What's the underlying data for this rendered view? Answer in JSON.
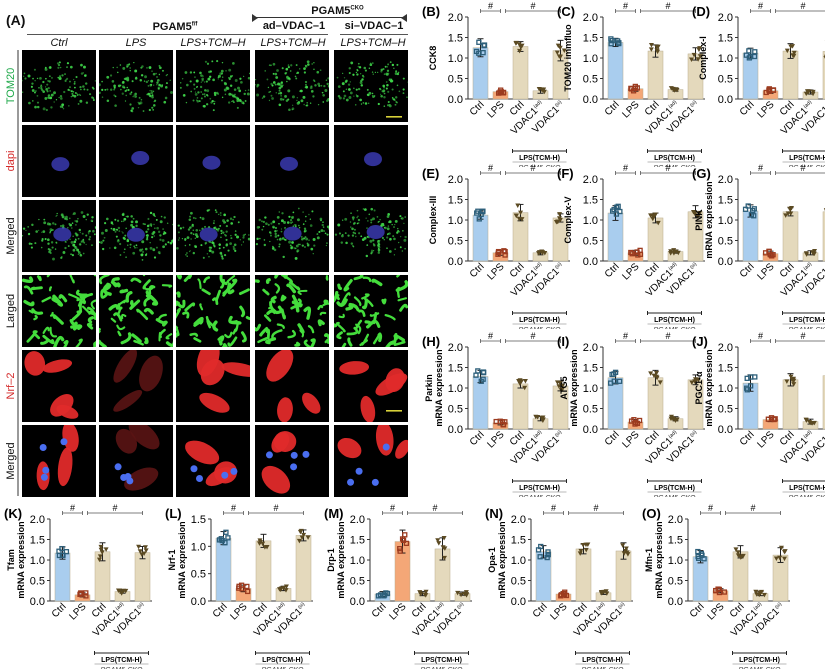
{
  "figure": {
    "panel_A": {
      "letter": "(A)",
      "group_left": {
        "label": "PGAM5",
        "superscript": "f/f"
      },
      "group_right": {
        "label": "PGAM5",
        "superscript": "CKO"
      },
      "sub_groups": [
        "ad–VDAC–1",
        "si–VDAC–1"
      ],
      "columns": [
        "Ctrl",
        "LPS",
        "LPS+TCM–H",
        "LPS+TCM–H",
        "LPS+TCM–H"
      ],
      "rows": [
        {
          "label": "TOM20",
          "color": "#1fa84a",
          "stain": "green"
        },
        {
          "label": "dapi",
          "color": "#d42a2a",
          "stain": "blue"
        },
        {
          "label": "Merged",
          "color": "#111111",
          "stain": "green-blue"
        },
        {
          "label": "Larged",
          "color": "#111111",
          "stain": "green-zoom"
        },
        {
          "label": "Nrf–2",
          "color": "#d42a2a",
          "stain": "red"
        },
        {
          "label": "Merged",
          "color": "#111111",
          "stain": "red-blue"
        }
      ],
      "scale_bar_color": "#d8d23a"
    },
    "shared_axis": {
      "categories": [
        "Ctrl",
        "LPS",
        "Ctrl",
        "VDAC1(ad)",
        "VDAC1(si)"
      ],
      "bracket_label": "LPS(TCM-H)",
      "bracket_sublabel": "PGAM5-CKO",
      "sig_mark": "#",
      "bar_colors": [
        "#a9cdee",
        "#f4a777",
        "#e4d9bc",
        "#e4d9bc",
        "#e4d9bc"
      ],
      "marker_colors": [
        "#2d5f7a",
        "#9c3b1f",
        "#5b4a22",
        "#5b4a22",
        "#5b4a22"
      ]
    }
  },
  "chart_data": [
    {
      "panel": "(B)",
      "type": "bar",
      "ylabel": "CCK8",
      "ylim": [
        0,
        2.0
      ],
      "yticks": [
        "0.0",
        "0.5",
        "1.0",
        "1.5",
        "2.0"
      ],
      "categories": [
        "Ctrl",
        "LPS",
        "Ctrl",
        "VDAC1(ad)",
        "VDAC1(si)"
      ],
      "values": [
        1.25,
        0.18,
        1.28,
        0.2,
        1.18
      ],
      "errors": [
        0.22,
        0.04,
        0.12,
        0.06,
        0.25
      ]
    },
    {
      "panel": "(C)",
      "type": "bar",
      "ylabel": "TOM20 immfluo",
      "ylim": [
        0,
        2.0
      ],
      "yticks": [
        "0.0",
        "0.5",
        "1.0",
        "1.5",
        "2.0"
      ],
      "categories": [
        "Ctrl",
        "LPS",
        "Ctrl",
        "VDAC1(ad)",
        "VDAC1(si)"
      ],
      "values": [
        1.38,
        0.25,
        1.17,
        0.23,
        1.1
      ],
      "errors": [
        0.1,
        0.06,
        0.15,
        0.04,
        0.15
      ]
    },
    {
      "panel": "(D)",
      "type": "bar",
      "ylabel": "Complex-I",
      "ylim": [
        0,
        2.0
      ],
      "yticks": [
        "0.0",
        "0.5",
        "1.0",
        "1.5",
        "2.0"
      ],
      "categories": [
        "Ctrl",
        "LPS",
        "Ctrl",
        "VDAC1(ad)",
        "VDAC1(si)"
      ],
      "values": [
        1.12,
        0.2,
        1.17,
        0.17,
        1.16
      ],
      "errors": [
        0.12,
        0.06,
        0.18,
        0.05,
        0.25
      ]
    },
    {
      "panel": "(E)",
      "type": "bar",
      "ylabel": "Complex-III",
      "ylim": [
        0,
        2.0
      ],
      "yticks": [
        "0.0",
        "0.5",
        "1.0",
        "1.5",
        "2.0"
      ],
      "categories": [
        "Ctrl",
        "LPS",
        "Ctrl",
        "VDAC1(ad)",
        "VDAC1(si)"
      ],
      "values": [
        1.12,
        0.2,
        1.18,
        0.2,
        1.05
      ],
      "errors": [
        0.1,
        0.06,
        0.2,
        0.05,
        0.1
      ]
    },
    {
      "panel": "(F)",
      "type": "bar",
      "ylabel": "Complex-V",
      "ylim": [
        0,
        2.0
      ],
      "yticks": [
        "0.0",
        "0.5",
        "1.0",
        "1.5",
        "2.0"
      ],
      "categories": [
        "Ctrl",
        "LPS",
        "Ctrl",
        "VDAC1(ad)",
        "VDAC1(si)"
      ],
      "values": [
        1.17,
        0.2,
        1.05,
        0.23,
        1.2
      ],
      "errors": [
        0.18,
        0.06,
        0.12,
        0.04,
        0.15
      ]
    },
    {
      "panel": "(G)",
      "type": "bar",
      "ylabel": "PINK mRNA expression",
      "ylim": [
        0,
        2.0
      ],
      "yticks": [
        "0.0",
        "0.5",
        "1.0",
        "1.5",
        "2.0"
      ],
      "categories": [
        "Ctrl",
        "LPS",
        "Ctrl",
        "VDAC1(ad)",
        "VDAC1(si)"
      ],
      "values": [
        1.22,
        0.18,
        1.2,
        0.2,
        1.2
      ],
      "errors": [
        0.15,
        0.06,
        0.1,
        0.05,
        0.18
      ]
    },
    {
      "panel": "(H)",
      "type": "bar",
      "ylabel": "Parkin mRNA expression",
      "ylim": [
        0,
        2.0
      ],
      "yticks": [
        "0.0",
        "0.5",
        "1.0",
        "1.5",
        "2.0"
      ],
      "categories": [
        "Ctrl",
        "LPS",
        "Ctrl",
        "VDAC1(ad)",
        "VDAC1(si)"
      ],
      "values": [
        1.28,
        0.15,
        1.1,
        0.25,
        1.05
      ],
      "errors": [
        0.15,
        0.05,
        0.1,
        0.05,
        0.12
      ]
    },
    {
      "panel": "(I)",
      "type": "bar",
      "ylabel": "ATG5 mRNA expression",
      "ylim": [
        0,
        2.0
      ],
      "yticks": [
        "0.0",
        "0.5",
        "1.0",
        "1.5",
        "2.0"
      ],
      "categories": [
        "Ctrl",
        "LPS",
        "Ctrl",
        "VDAC1(ad)",
        "VDAC1(si)"
      ],
      "values": [
        1.25,
        0.17,
        1.25,
        0.25,
        1.2
      ],
      "errors": [
        0.15,
        0.06,
        0.18,
        0.05,
        0.12
      ]
    },
    {
      "panel": "(J)",
      "type": "bar",
      "ylabel": "PGC1-α mRNA expression",
      "ylim": [
        0,
        2.0
      ],
      "yticks": [
        "0.0",
        "0.5",
        "1.0",
        "1.5",
        "2.0"
      ],
      "categories": [
        "Ctrl",
        "LPS",
        "Ctrl",
        "VDAC1(ad)",
        "VDAC1(si)"
      ],
      "values": [
        1.12,
        0.23,
        1.2,
        0.18,
        1.3
      ],
      "errors": [
        0.2,
        0.05,
        0.15,
        0.06,
        0.08
      ]
    },
    {
      "panel": "(K)",
      "type": "bar",
      "ylabel": "Tfam mRNA expression",
      "ylim": [
        0,
        2.0
      ],
      "yticks": [
        "0.0",
        "0.5",
        "1.0",
        "1.5",
        "2.0"
      ],
      "categories": [
        "Ctrl",
        "LPS",
        "Ctrl",
        "VDAC1(ad)",
        "VDAC1(si)"
      ],
      "values": [
        1.17,
        0.15,
        1.2,
        0.23,
        1.18
      ],
      "errors": [
        0.15,
        0.05,
        0.22,
        0.04,
        0.15
      ]
    },
    {
      "panel": "(L)",
      "type": "bar",
      "ylabel": "Nrf-1 mRNA expression",
      "ylim": [
        0,
        1.5
      ],
      "yticks": [
        "0.0",
        "0.5",
        "1.0",
        "1.5"
      ],
      "categories": [
        "Ctrl",
        "LPS",
        "Ctrl",
        "VDAC1(ad)",
        "VDAC1(si)"
      ],
      "values": [
        1.15,
        0.23,
        1.1,
        0.23,
        1.2
      ],
      "errors": [
        0.12,
        0.06,
        0.12,
        0.04,
        0.1
      ]
    },
    {
      "panel": "(M)",
      "type": "bar",
      "ylabel": "Drp-1 mRNA expression",
      "ylim": [
        0,
        2.0
      ],
      "yticks": [
        "0.0",
        "0.5",
        "1.0",
        "1.5",
        "2.0"
      ],
      "categories": [
        "Ctrl",
        "LPS",
        "Ctrl",
        "VDAC1(ad)",
        "VDAC1(si)"
      ],
      "values": [
        0.17,
        1.45,
        0.18,
        1.27,
        0.18
      ],
      "errors": [
        0.06,
        0.28,
        0.05,
        0.27,
        0.04
      ]
    },
    {
      "panel": "(N)",
      "type": "bar",
      "ylabel": "Opa-1 mRNA expression",
      "ylim": [
        0,
        2.0
      ],
      "yticks": [
        "0.0",
        "0.5",
        "1.0",
        "1.5",
        "2.0"
      ],
      "categories": [
        "Ctrl",
        "LPS",
        "Ctrl",
        "VDAC1(ad)",
        "VDAC1(si)"
      ],
      "values": [
        1.2,
        0.17,
        1.27,
        0.2,
        1.22
      ],
      "errors": [
        0.15,
        0.06,
        0.12,
        0.04,
        0.2
      ]
    },
    {
      "panel": "(O)",
      "type": "bar",
      "ylabel": "Mfn-1 mRNA expression",
      "ylim": [
        0,
        2.0
      ],
      "yticks": [
        "0.0",
        "0.5",
        "1.0",
        "1.5",
        "2.0"
      ],
      "categories": [
        "Ctrl",
        "LPS",
        "Ctrl",
        "VDAC1(ad)",
        "VDAC1(si)"
      ],
      "values": [
        1.08,
        0.25,
        1.2,
        0.18,
        1.12
      ],
      "errors": [
        0.15,
        0.05,
        0.15,
        0.05,
        0.18
      ]
    }
  ]
}
